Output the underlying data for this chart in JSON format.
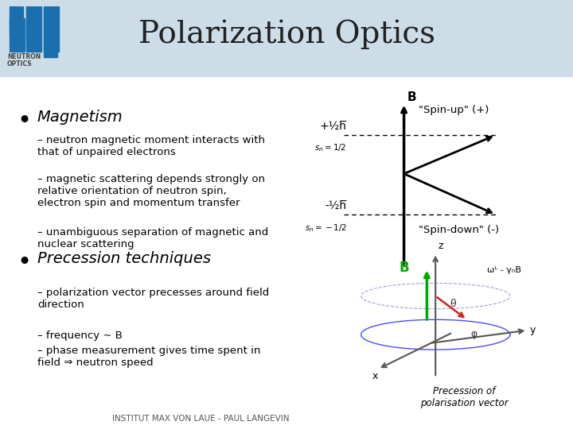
{
  "title": "Polarization Optics",
  "title_fontsize": 28,
  "title_color": "#222222",
  "bg_color": "#ffffff",
  "header_bg": "#d8e8f0",
  "olive_bar_color": "#c8c832",
  "bullet1": "Magnetism",
  "sub1_1": "neutron magnetic moment interacts with\nthat of unpaired electrons",
  "sub1_2": "magnetic scattering depends strongly on\nrelative orientation of neutron spin,\nelectron spin and momentum transfer",
  "sub1_3": "unambiguous separation of magnetic and\nnuclear scattering",
  "bullet2": "Precession techniques",
  "sub2_1": "polarization vector precesses around field\ndirection",
  "sub2_2": "frequency ~ B",
  "sub2_3": "phase measurement gives time spent in\nfield ⇒ neutron speed",
  "footer": "INSTITUT MAX VON LAUE - PAUL LANGEVIN",
  "spin_up_label": "\"Spin-up\" (+)",
  "spin_down_label": "\"Spin-down\" (-)",
  "plus_half": "+½h̅",
  "minus_half": "-½h̅",
  "sn_plus": "sₙ = 1/2",
  "sn_minus": "sₙ = -1/2",
  "precession_label": "Precession of\npolarisation vector",
  "omega_label": "ωᴸ - γₙB",
  "theta_label": "θ",
  "phi_label": "φ",
  "B_label": "B",
  "logo_color": "#1a6faf",
  "neutron_text": "NEUTRON\nOPTICS",
  "green_arrow_color": "#00aa00",
  "diagram_text_color": "#000000"
}
